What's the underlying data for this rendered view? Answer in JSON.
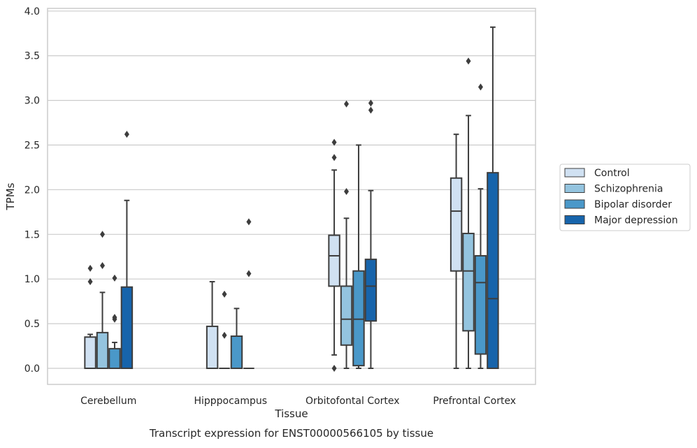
{
  "chart_data": {
    "type": "box",
    "xlabel": "Tissue",
    "ylabel": "TPMs",
    "caption": "Transcript expression for ENST00000566105 by tissue",
    "ylim": [
      -0.18,
      4.03
    ],
    "yticks": [
      0.0,
      0.5,
      1.0,
      1.5,
      2.0,
      2.5,
      3.0,
      3.5,
      4.0
    ],
    "ytick_labels": [
      "0.0",
      "0.5",
      "1.0",
      "1.5",
      "2.0",
      "2.5",
      "3.0",
      "3.5",
      "4.0"
    ],
    "grid": "horizontal",
    "legend_position": "right",
    "categories": [
      "Cerebellum",
      "Hipppocampus",
      "Orbitofontal Cortex",
      "Prefrontal Cortex"
    ],
    "series": [
      {
        "name": "Control",
        "color": "#d0e1f2",
        "boxes": [
          {
            "whislo": 0.0,
            "q1": 0.0,
            "med": 0.0,
            "q3": 0.35,
            "whishi": 0.38,
            "fliers": [
              0.97,
              1.12
            ]
          },
          {
            "whislo": 0.0,
            "q1": 0.0,
            "med": 0.0,
            "q3": 0.47,
            "whishi": 0.97,
            "fliers": []
          },
          {
            "whislo": 0.15,
            "q1": 0.92,
            "med": 1.26,
            "q3": 1.49,
            "whishi": 2.22,
            "fliers": [
              0.0,
              2.36,
              2.53
            ]
          },
          {
            "whislo": 0.0,
            "q1": 1.09,
            "med": 1.76,
            "q3": 2.13,
            "whishi": 2.62,
            "fliers": []
          }
        ]
      },
      {
        "name": "Schizophrenia",
        "color": "#94c4df",
        "boxes": [
          {
            "whislo": 0.0,
            "q1": 0.0,
            "med": 0.0,
            "q3": 0.4,
            "whishi": 0.85,
            "fliers": [
              1.15,
              1.5
            ]
          },
          {
            "whislo": 0.0,
            "q1": 0.0,
            "med": 0.0,
            "q3": 0.0,
            "whishi": 0.0,
            "fliers": [
              0.37,
              0.83
            ]
          },
          {
            "whislo": 0.0,
            "q1": 0.26,
            "med": 0.55,
            "q3": 0.92,
            "whishi": 1.68,
            "fliers": [
              1.98,
              2.96
            ]
          },
          {
            "whislo": 0.0,
            "q1": 0.42,
            "med": 1.09,
            "q3": 1.51,
            "whishi": 2.83,
            "fliers": [
              3.44
            ]
          }
        ]
      },
      {
        "name": "Bipolar disorder",
        "color": "#4a98c9",
        "boxes": [
          {
            "whislo": 0.0,
            "q1": 0.0,
            "med": 0.0,
            "q3": 0.22,
            "whishi": 0.29,
            "fliers": [
              0.55,
              0.57,
              1.01
            ]
          },
          {
            "whislo": 0.0,
            "q1": 0.0,
            "med": 0.0,
            "q3": 0.36,
            "whishi": 0.67,
            "fliers": []
          },
          {
            "whislo": 0.0,
            "q1": 0.03,
            "med": 0.55,
            "q3": 1.09,
            "whishi": 2.5,
            "fliers": []
          },
          {
            "whislo": 0.0,
            "q1": 0.16,
            "med": 0.96,
            "q3": 1.26,
            "whishi": 2.01,
            "fliers": [
              3.15
            ]
          }
        ]
      },
      {
        "name": "Major depression",
        "color": "#1764ab",
        "boxes": [
          {
            "whislo": 0.0,
            "q1": 0.0,
            "med": 0.0,
            "q3": 0.91,
            "whishi": 1.88,
            "fliers": [
              2.62
            ]
          },
          {
            "whislo": 0.0,
            "q1": 0.0,
            "med": 0.0,
            "q3": 0.0,
            "whishi": 0.0,
            "fliers": [
              1.06,
              1.64
            ]
          },
          {
            "whislo": 0.0,
            "q1": 0.53,
            "med": 0.92,
            "q3": 1.22,
            "whishi": 1.99,
            "fliers": [
              2.89,
              2.97
            ]
          },
          {
            "whislo": 0.0,
            "q1": 0.0,
            "med": 0.78,
            "q3": 2.19,
            "whishi": 3.82,
            "fliers": []
          }
        ]
      }
    ]
  }
}
